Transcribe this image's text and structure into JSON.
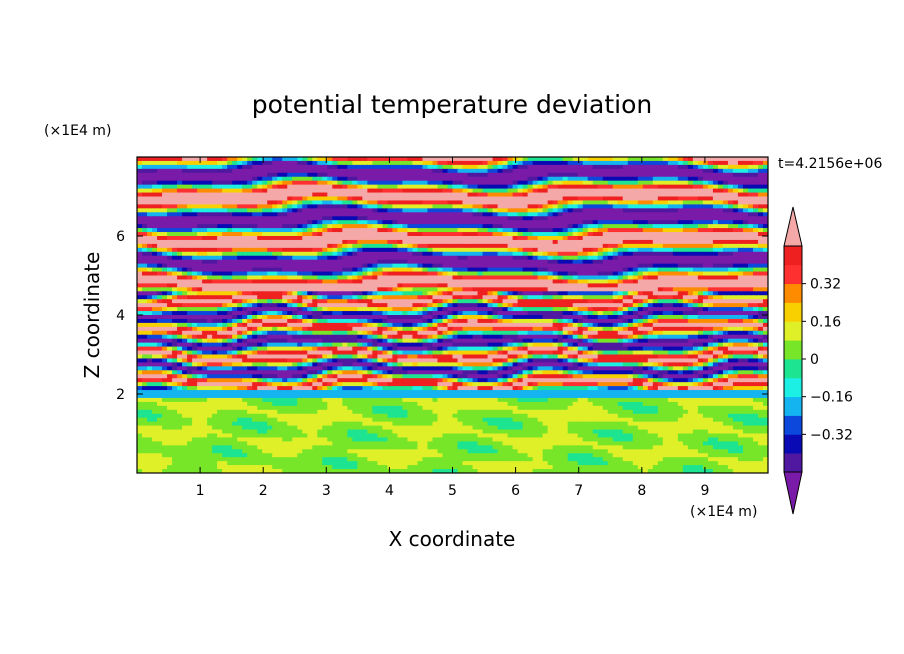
{
  "chart_data": {
    "type": "heatmap",
    "title": "potential temperature deviation",
    "xlabel": "X coordinate",
    "ylabel": "Z coordinate",
    "x_unit": "(×1E4 m)",
    "y_unit": "(×1E4 m)",
    "time_label": "t=4.2156e+06",
    "xlim": [
      0,
      10
    ],
    "ylim": [
      0,
      8
    ],
    "x_ticks": [
      1,
      2,
      3,
      4,
      5,
      6,
      7,
      8,
      9
    ],
    "y_ticks": [
      2,
      4,
      6
    ],
    "colorbar": {
      "levels": [
        -0.48,
        -0.4,
        -0.32,
        -0.24,
        -0.16,
        -0.08,
        0,
        0.08,
        0.16,
        0.24,
        0.32,
        0.4,
        0.48
      ],
      "colors": [
        "#7a1aa8",
        "#5018a0",
        "#0a0ab4",
        "#0c48dc",
        "#14b4f0",
        "#1cf0e4",
        "#1ce490",
        "#78e628",
        "#e0f028",
        "#f8d000",
        "#ff8c00",
        "#ff3030",
        "#ee2020",
        "#f4a8a8"
      ],
      "tick_labels": [
        "0.32",
        "0.16",
        "0",
        "−0.16",
        "−0.32"
      ],
      "tick_values": [
        0.32,
        0.16,
        0,
        -0.16,
        -0.32
      ]
    },
    "description_bands": [
      {
        "z_range": [
          0,
          2.0
        ],
        "dominant_values": [
          0.04,
          0.1
        ]
      },
      {
        "z_range": [
          2.0,
          4.5
        ],
        "dominant_values": [
          -0.5,
          0.5,
          0.0,
          0.3,
          -0.2
        ]
      },
      {
        "z_range": [
          4.5,
          8.0
        ],
        "dominant_values": [
          -0.5,
          0.5
        ]
      }
    ]
  }
}
